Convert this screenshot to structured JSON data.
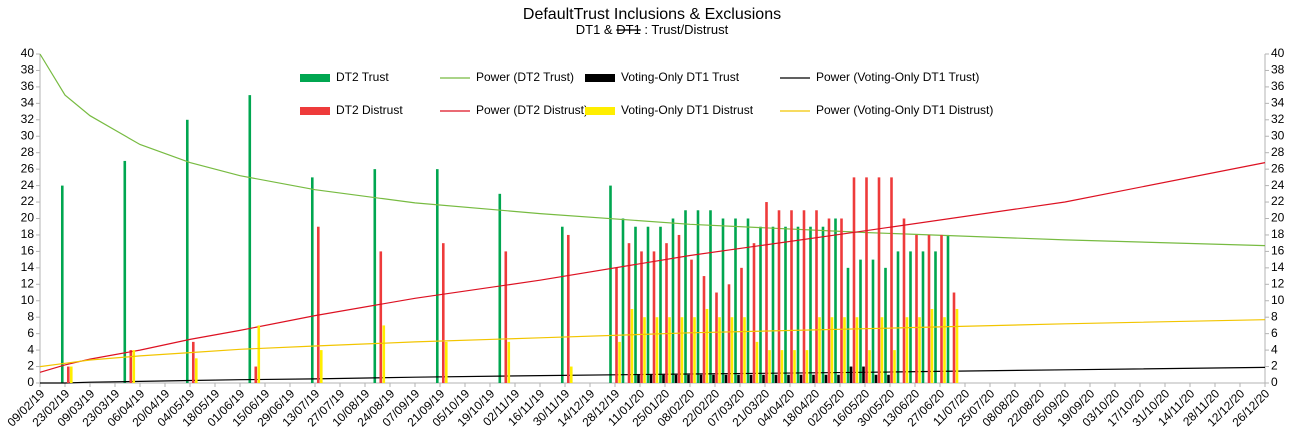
{
  "chart_data": {
    "type": "bar",
    "title": "DefaultTrust Inclusions & Exclusions",
    "subtitle": {
      "before": "DT1 &",
      "struck": "DT1",
      "after": ": Trust/Distrust"
    },
    "x": [
      "24/02/19",
      "31/03/19",
      "05/05/19",
      "09/06/19",
      "14/07/19",
      "18/08/19",
      "22/09/19",
      "27/10/19",
      "01/12/19",
      "28/12/19",
      "04/01/20",
      "11/01/20",
      "18/01/20",
      "25/01/20",
      "01/02/20",
      "08/02/20",
      "15/02/20",
      "22/02/20",
      "29/02/20",
      "07/03/20",
      "14/03/20",
      "21/03/20",
      "28/03/20",
      "04/04/20",
      "11/04/20",
      "18/04/20",
      "25/04/20",
      "02/05/20",
      "09/05/20",
      "16/05/20",
      "23/05/20",
      "30/05/20",
      "06/06/20",
      "13/06/20",
      "20/06/20",
      "27/06/20",
      "04/07/20"
    ],
    "xlim": [
      "09/02/19",
      "26/12/20"
    ],
    "xticks": [
      "09/02/19",
      "23/02/19",
      "09/03/19",
      "23/03/19",
      "06/04/19",
      "20/04/19",
      "04/05/19",
      "18/05/19",
      "01/06/19",
      "15/06/19",
      "29/06/19",
      "13/07/19",
      "27/07/19",
      "10/08/19",
      "24/08/19",
      "07/09/19",
      "21/09/19",
      "05/10/19",
      "19/10/19",
      "02/11/19",
      "16/11/19",
      "30/11/19",
      "14/12/19",
      "28/12/19",
      "11/01/20",
      "25/01/20",
      "08/02/20",
      "22/02/20",
      "07/03/20",
      "21/03/20",
      "04/04/20",
      "18/04/20",
      "02/05/20",
      "16/05/20",
      "30/05/20",
      "13/06/20",
      "27/06/20",
      "11/07/20",
      "25/07/20",
      "08/08/20",
      "22/08/20",
      "05/09/20",
      "19/09/20",
      "03/10/20",
      "17/10/20",
      "31/10/20",
      "14/11/20",
      "28/11/20",
      "12/12/20",
      "26/12/20"
    ],
    "ylim": [
      0,
      40
    ],
    "yticks": [
      0,
      2,
      4,
      6,
      8,
      10,
      12,
      14,
      16,
      18,
      20,
      22,
      24,
      26,
      28,
      30,
      32,
      34,
      36,
      38,
      40
    ],
    "y2lim": [
      0,
      40
    ],
    "y2ticks": [
      0,
      2,
      4,
      6,
      8,
      10,
      12,
      14,
      16,
      18,
      20,
      22,
      24,
      26,
      28,
      30,
      32,
      34,
      36,
      38,
      40
    ],
    "legend": "top",
    "series": [
      {
        "name": "DT2 Trust",
        "type": "bar",
        "color": "#00a650",
        "values": [
          24,
          27,
          32,
          35,
          25,
          26,
          26,
          23,
          19,
          24,
          20,
          19,
          19,
          19,
          20,
          21,
          21,
          21,
          20,
          20,
          20,
          19,
          19,
          19,
          19,
          19,
          19,
          20,
          14,
          15,
          15,
          14,
          16,
          16,
          16,
          16,
          18
        ]
      },
      {
        "name": "Power (DT2 Trust)",
        "type": "line",
        "color": "#77bb41",
        "x": [
          "09/02/19",
          "23/02/19",
          "09/03/19",
          "06/04/19",
          "04/05/19",
          "01/06/19",
          "13/07/19",
          "07/09/19",
          "16/11/19",
          "08/02/20",
          "16/05/20",
          "05/09/20",
          "26/12/20"
        ],
        "values": [
          40,
          35,
          32.5,
          29,
          26.8,
          25.2,
          23.5,
          21.9,
          20.6,
          19.3,
          18.3,
          17.4,
          16.7
        ]
      },
      {
        "name": "Voting-Only DT1 Trust",
        "type": "bar",
        "color": "#000000",
        "values": [
          0,
          0,
          0,
          0,
          0,
          0,
          0,
          0,
          0,
          0,
          0,
          1,
          1,
          1,
          1,
          1,
          1,
          1,
          1,
          1,
          1,
          1,
          1,
          1,
          1,
          1,
          1,
          1,
          2,
          2,
          1,
          1,
          0,
          0,
          0,
          0,
          0
        ]
      },
      {
        "name": "Power (Voting-Only DT1 Trust)",
        "type": "line",
        "color": "#000000",
        "x": [
          "09/02/19",
          "23/02/19",
          "09/03/19",
          "06/04/19",
          "04/05/19",
          "01/06/19",
          "13/07/19",
          "07/09/19",
          "16/11/19",
          "08/02/20",
          "16/05/20",
          "05/09/20",
          "26/12/20"
        ],
        "values": [
          0,
          0,
          0.1,
          0.2,
          0.3,
          0.4,
          0.5,
          0.7,
          0.9,
          1.1,
          1.3,
          1.6,
          1.9
        ]
      },
      {
        "name": "DT2 Distrust",
        "type": "bar",
        "color": "#ee3b3b",
        "values": [
          2,
          4,
          5,
          2,
          19,
          16,
          17,
          16,
          18,
          14,
          17,
          16,
          16,
          17,
          18,
          15,
          13,
          11,
          12,
          14,
          17,
          22,
          21,
          21,
          21,
          21,
          20,
          20,
          25,
          25,
          25,
          25,
          20,
          18,
          18,
          18,
          11
        ]
      },
      {
        "name": "Power (DT2 Distrust)",
        "type": "line",
        "color": "#dd1122",
        "x": [
          "09/02/19",
          "23/02/19",
          "09/03/19",
          "06/04/19",
          "04/05/19",
          "01/06/19",
          "13/07/19",
          "07/09/19",
          "16/11/19",
          "08/02/20",
          "16/05/20",
          "05/09/20",
          "26/12/20"
        ],
        "values": [
          1.3,
          2.2,
          2.9,
          4,
          5.3,
          6.4,
          8.2,
          10.3,
          12.5,
          15.5,
          18.5,
          22,
          26.8
        ]
      },
      {
        "name": "Voting-Only DT1 Distrust",
        "type": "bar",
        "color": "#ffee00",
        "values": [
          2,
          4,
          3,
          7,
          4,
          7,
          5,
          5,
          2,
          5,
          9,
          8,
          8,
          8,
          8,
          8,
          9,
          8,
          8,
          8,
          5,
          4,
          4,
          4,
          4,
          8,
          8,
          8,
          8,
          4,
          8,
          4,
          8,
          8,
          9,
          8,
          9
        ]
      },
      {
        "name": "Power (Voting-Only DT1 Distrust)",
        "type": "line",
        "color": "#f2c500",
        "x": [
          "09/02/19",
          "23/02/19",
          "09/03/19",
          "06/04/19",
          "04/05/19",
          "01/06/19",
          "13/07/19",
          "07/09/19",
          "16/11/19",
          "08/02/20",
          "16/05/20",
          "05/09/20",
          "26/12/20"
        ],
        "values": [
          2,
          2.4,
          2.8,
          3.3,
          3.7,
          4.1,
          4.5,
          5,
          5.5,
          6.1,
          6.6,
          7.2,
          7.7
        ]
      }
    ]
  }
}
